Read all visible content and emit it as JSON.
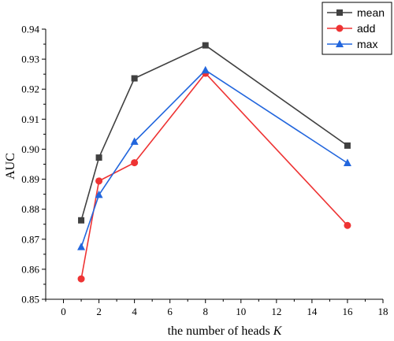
{
  "chart_data": {
    "type": "line",
    "xlabel": "the number of heads",
    "xlabel_var": "K",
    "ylabel": "AUC",
    "xlim": [
      -1,
      18
    ],
    "ylim": [
      0.85,
      0.94
    ],
    "xticks": [
      0,
      2,
      4,
      6,
      8,
      10,
      12,
      14,
      16,
      18
    ],
    "yticks": [
      0.85,
      0.86,
      0.87,
      0.88,
      0.89,
      0.9,
      0.91,
      0.92,
      0.93,
      0.94
    ],
    "ytick_labels": [
      "0.85",
      "0.86",
      "0.87",
      "0.88",
      "0.89",
      "0.90",
      "0.91",
      "0.92",
      "0.93",
      "0.94"
    ],
    "legend_position": "top-right",
    "x": [
      1,
      2,
      4,
      8,
      16
    ],
    "series": [
      {
        "name": "mean",
        "values": [
          0.8763,
          0.8972,
          0.9236,
          0.9346,
          0.9012
        ],
        "color": "#404040",
        "marker": "square"
      },
      {
        "name": "add",
        "values": [
          0.8568,
          0.8894,
          0.8955,
          0.9253,
          0.8746
        ],
        "color": "#ee3333",
        "marker": "circle"
      },
      {
        "name": "max",
        "values": [
          0.8674,
          0.8848,
          0.9025,
          0.9263,
          0.8954
        ],
        "color": "#2266dd",
        "marker": "triangle"
      }
    ]
  }
}
